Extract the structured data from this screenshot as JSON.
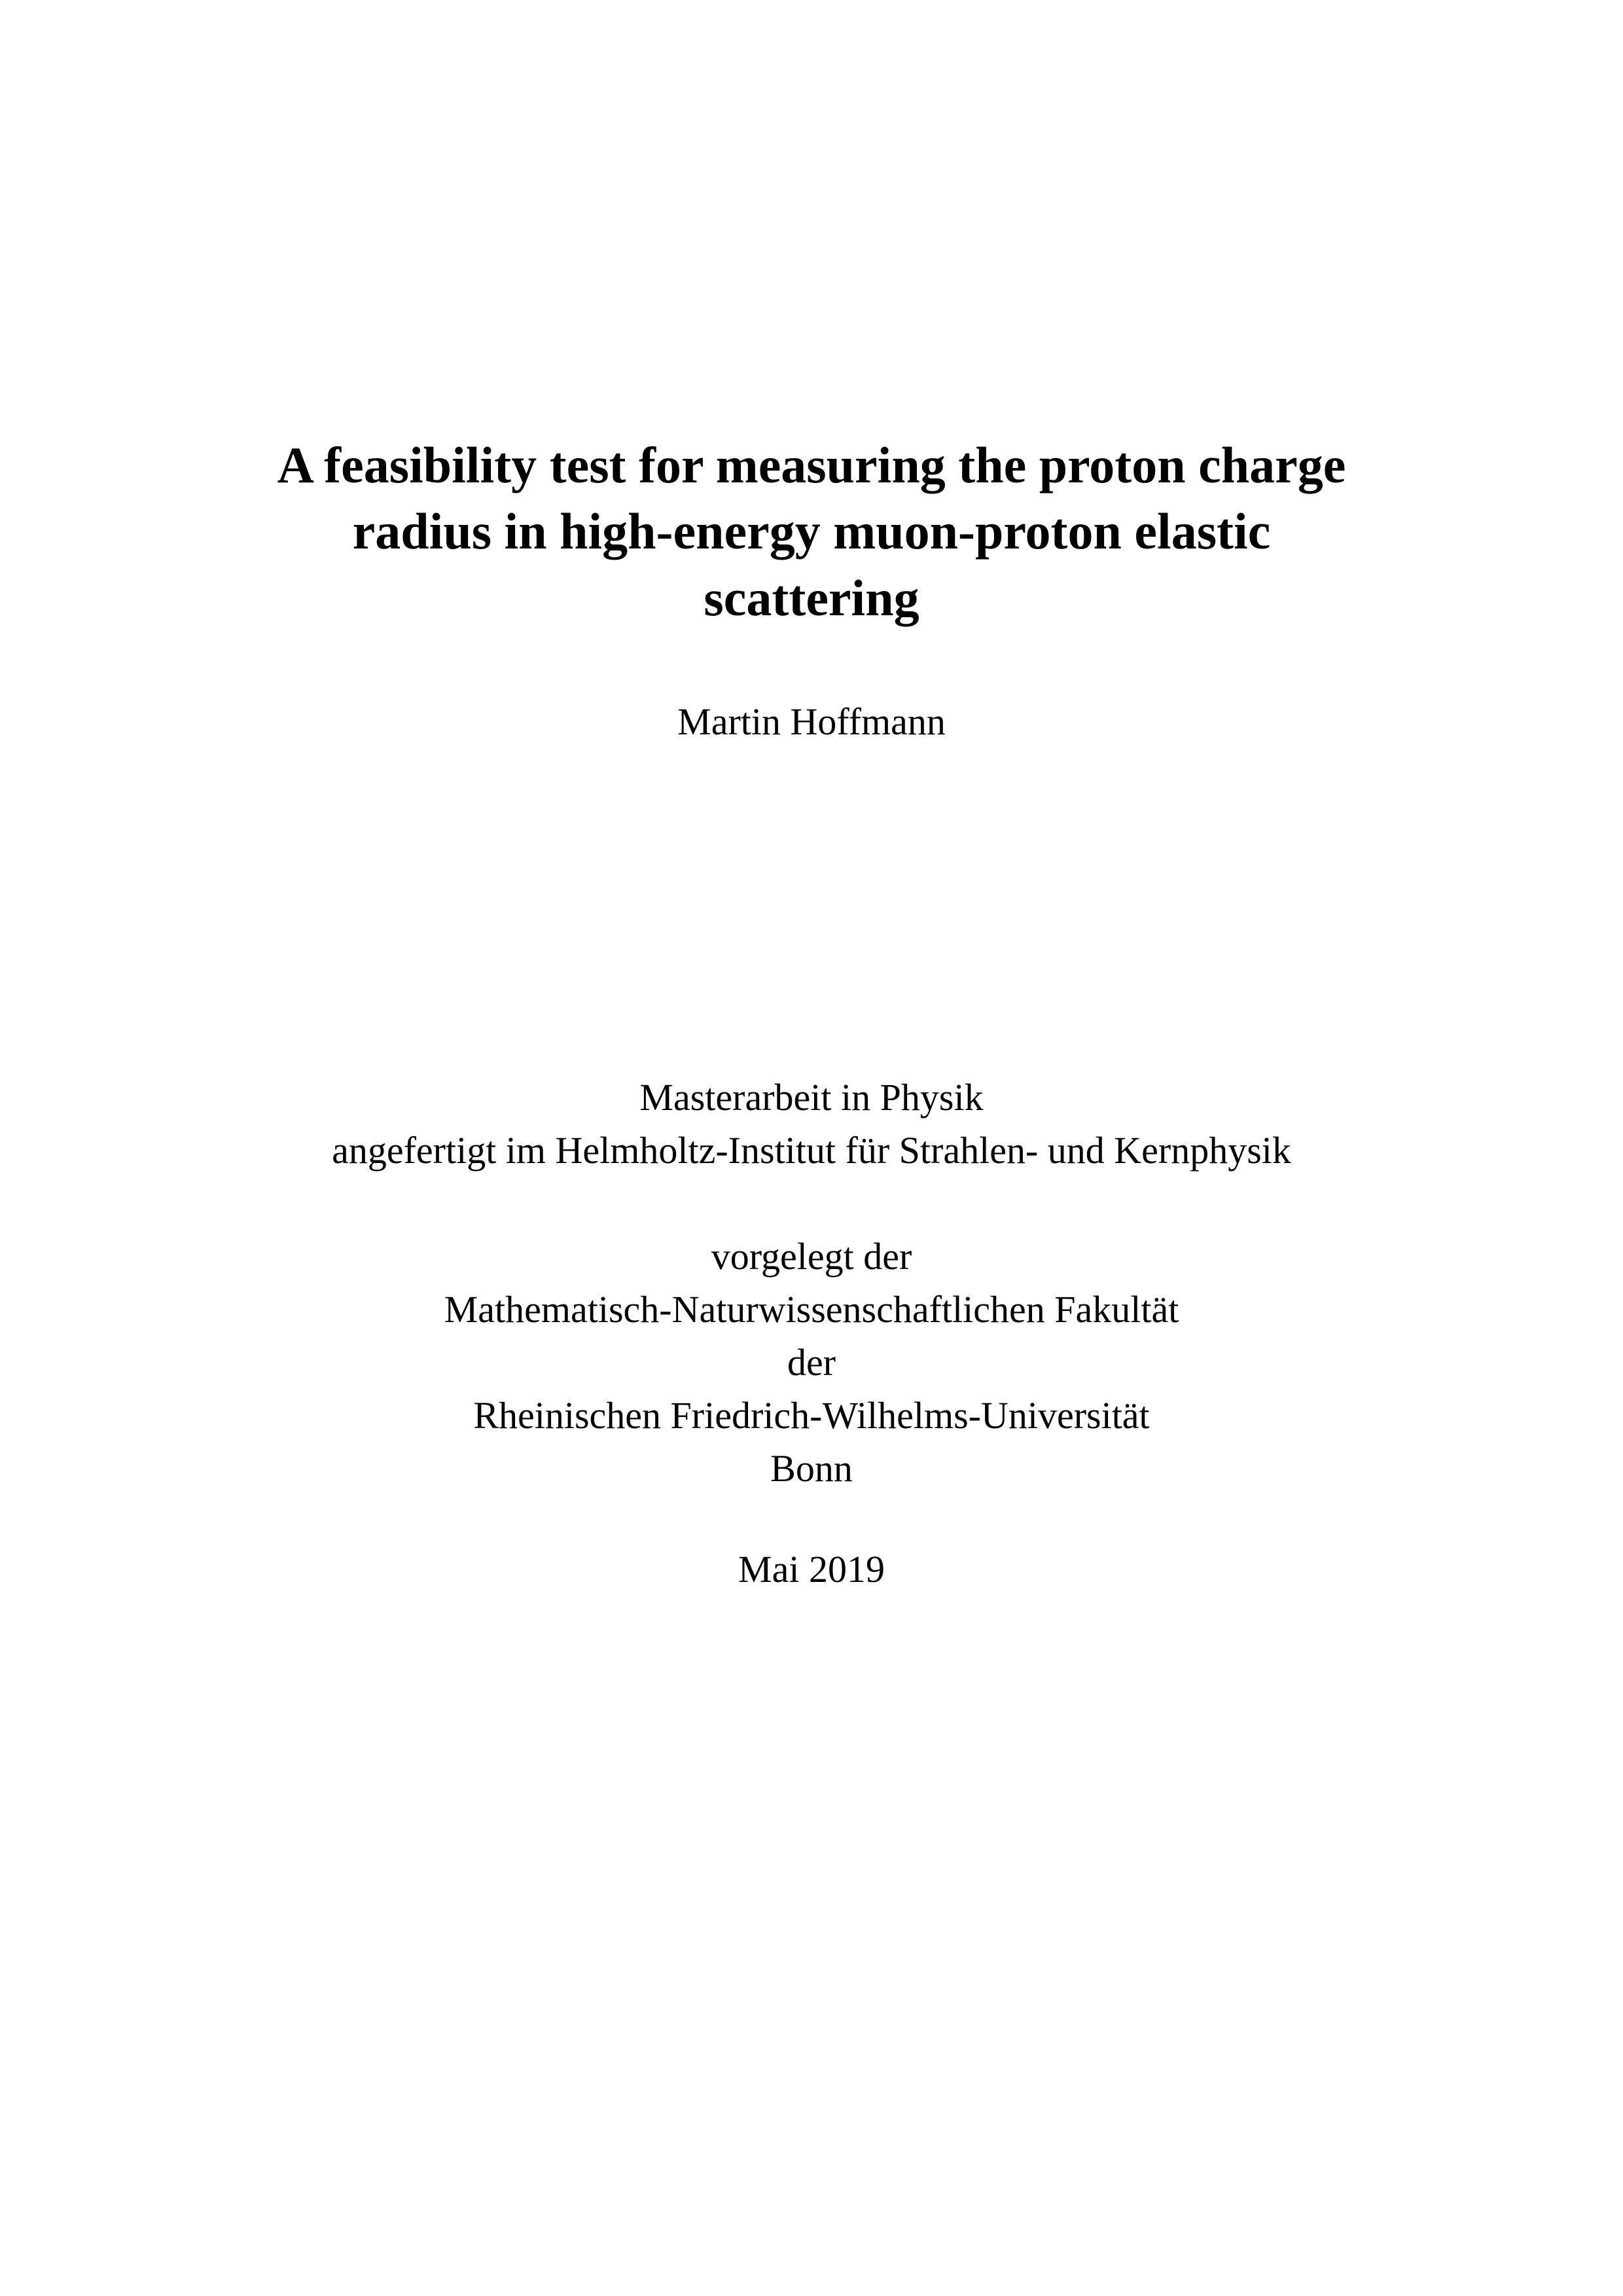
{
  "title": {
    "line1": "A feasibility test for measuring the proton charge",
    "line2": "radius in high-energy muon-proton elastic",
    "line3": "scattering"
  },
  "author": "Martin Hoffmann",
  "thesis_info": {
    "line1": "Masterarbeit in Physik",
    "line2": "angefertigt im Helmholtz-Institut für Strahlen- und Kernphysik"
  },
  "submitted_to": {
    "line1": "vorgelegt der",
    "line2": "Mathematisch-Naturwissenschaftlichen Fakultät",
    "line3": "der",
    "line4": "Rheinischen Friedrich-Wilhelms-Universität",
    "line5": "Bonn"
  },
  "date": "Mai 2019"
}
